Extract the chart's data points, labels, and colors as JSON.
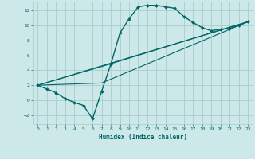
{
  "xlabel": "Humidex (Indice chaleur)",
  "background_color": "#cce8e8",
  "grid_color": "#aacccc",
  "line_color": "#006666",
  "xlim": [
    -0.5,
    23.5
  ],
  "ylim": [
    -3.2,
    13.2
  ],
  "xticks": [
    0,
    1,
    2,
    3,
    4,
    5,
    6,
    7,
    8,
    9,
    10,
    11,
    12,
    13,
    14,
    15,
    16,
    17,
    18,
    19,
    20,
    21,
    22,
    23
  ],
  "yticks": [
    -2,
    0,
    2,
    4,
    6,
    8,
    10,
    12
  ],
  "curve1_x": [
    0,
    1,
    2,
    3,
    4,
    5,
    6,
    7,
    8,
    9,
    10,
    11,
    12,
    13,
    14,
    15,
    16,
    17,
    18,
    19,
    20,
    21,
    22,
    23
  ],
  "curve1_y": [
    2.0,
    1.5,
    1.0,
    0.2,
    -0.3,
    -0.7,
    -2.5,
    1.2,
    4.8,
    9.0,
    10.9,
    12.5,
    12.7,
    12.7,
    12.5,
    12.3,
    11.2,
    10.4,
    9.7,
    9.3,
    9.5,
    9.6,
    10.0,
    10.5
  ],
  "line1_x": [
    0,
    23
  ],
  "line1_y": [
    2.0,
    10.5
  ],
  "line2_x": [
    0,
    7,
    23
  ],
  "line2_y": [
    2.0,
    2.3,
    10.5
  ],
  "line3_x": [
    0,
    7,
    23
  ],
  "line3_y": [
    2.0,
    4.5,
    10.5
  ]
}
